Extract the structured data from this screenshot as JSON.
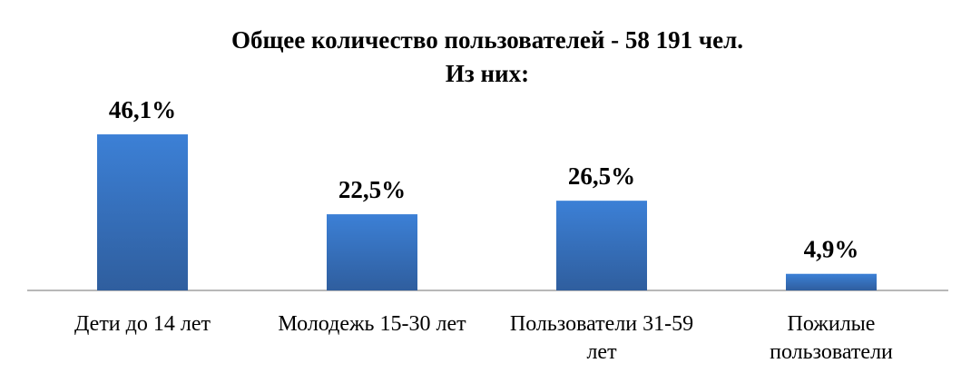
{
  "chart_data": {
    "type": "bar",
    "title": "Общее количество пользователей - 58 191 чел.",
    "subtitle": "Из них:",
    "categories": [
      "Дети до 14 лет",
      "Молодежь 15-30 лет",
      "Пользователи 31-59 лет",
      "Пожилые пользователи"
    ],
    "values": [
      46.1,
      22.5,
      26.5,
      4.9
    ],
    "value_labels": [
      "46,1%",
      "22,5%",
      "26,5%",
      "4,9%"
    ],
    "color": "#3a7bd0"
  }
}
